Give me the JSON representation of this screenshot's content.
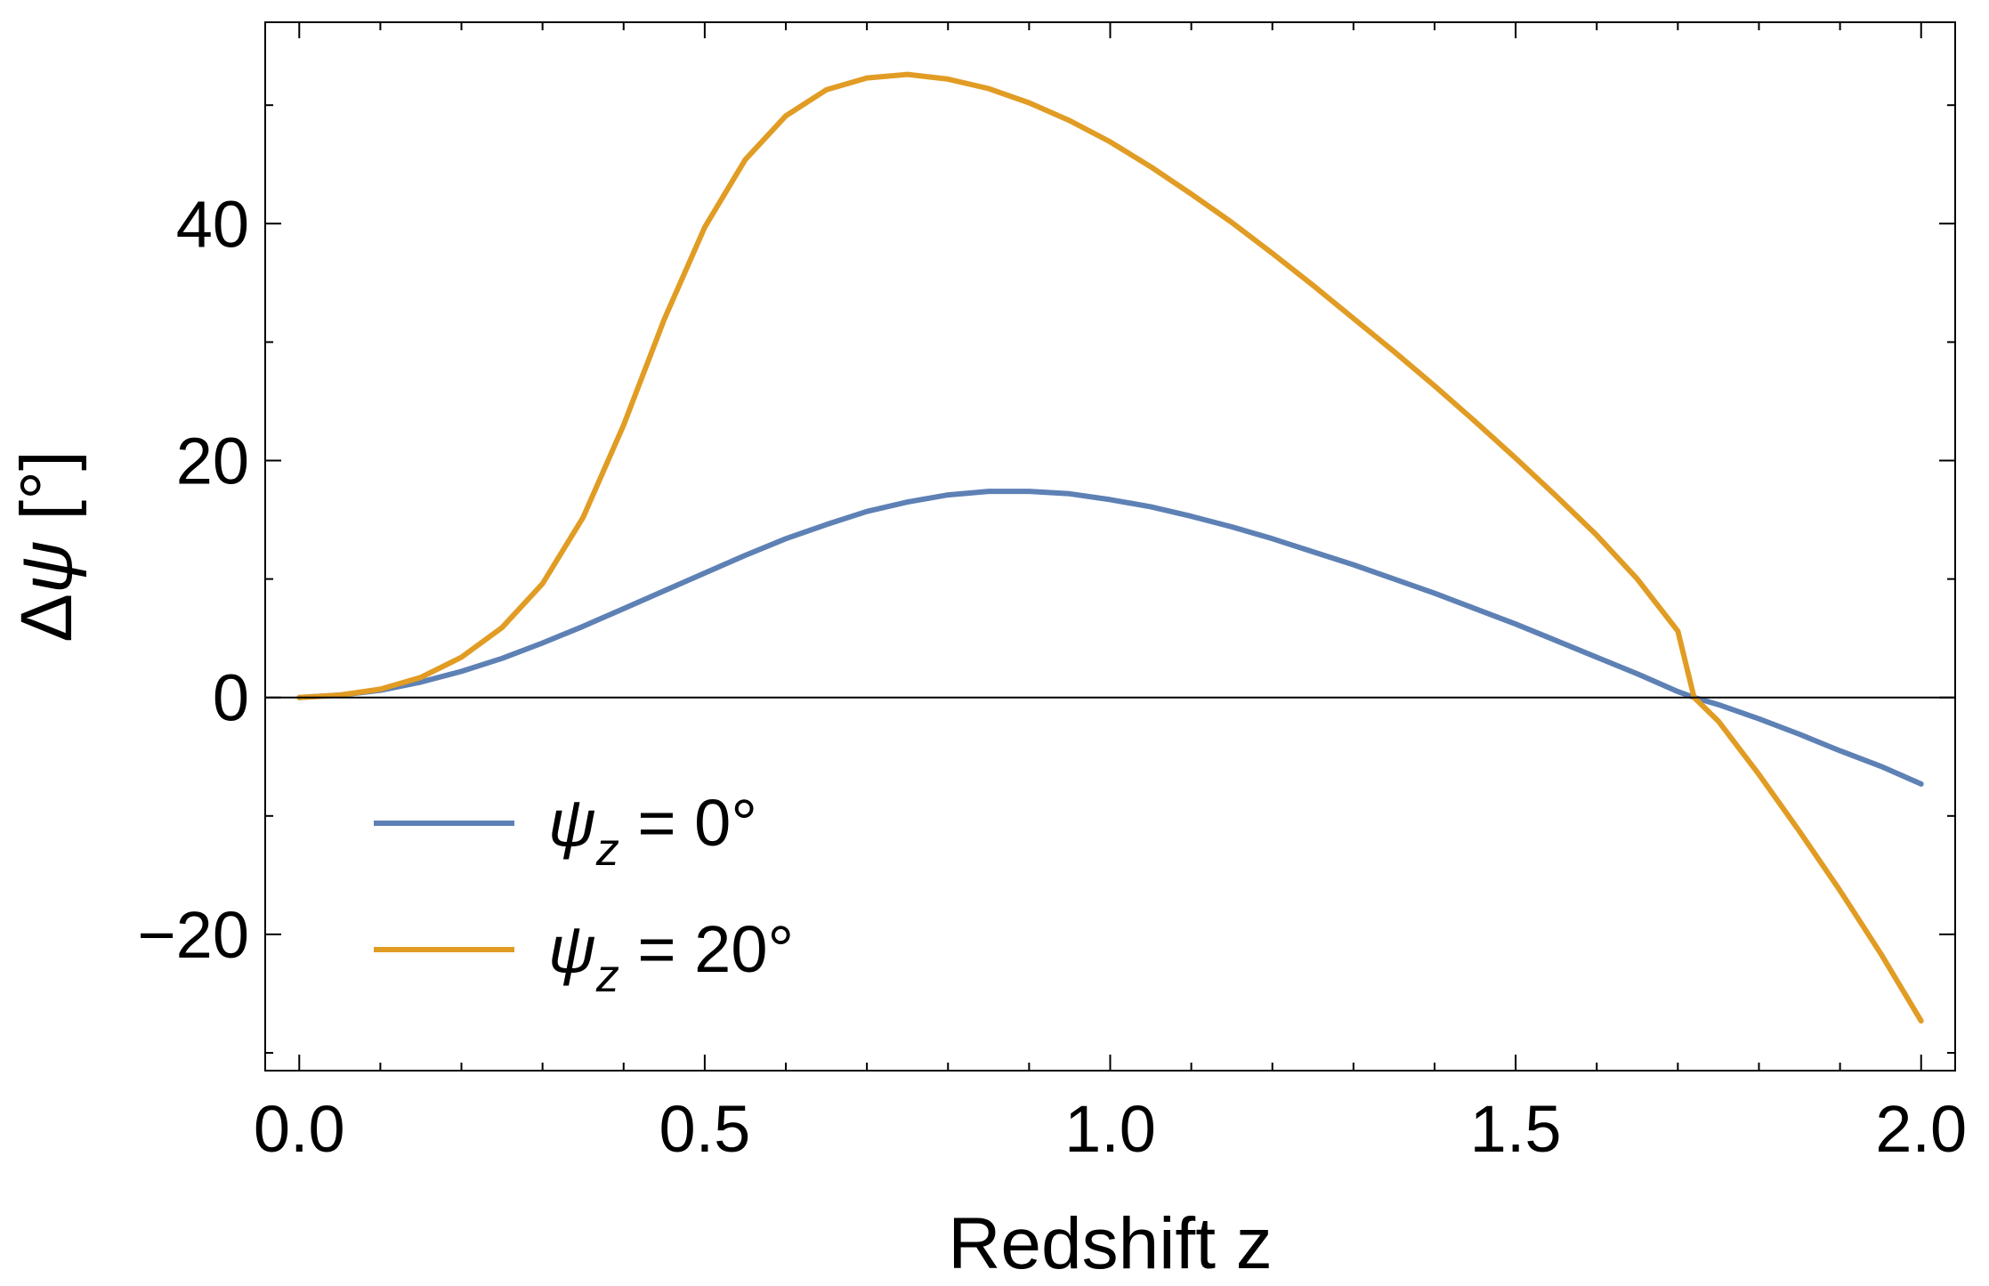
{
  "chart_data": {
    "type": "line",
    "title": "",
    "xlabel": "Redshift z",
    "ylabel": {
      "prefix": "Δ",
      "symbol": "ψ",
      "unit": "[°]"
    },
    "xlim": [
      -0.042,
      2.042
    ],
    "ylim": [
      -31.5,
      57.0
    ],
    "x_ticks": [
      {
        "value": 0.0,
        "label": "0.0"
      },
      {
        "value": 0.5,
        "label": "0.5"
      },
      {
        "value": 1.0,
        "label": "1.0"
      },
      {
        "value": 1.5,
        "label": "1.5"
      },
      {
        "value": 2.0,
        "label": "2.0"
      }
    ],
    "y_ticks": [
      {
        "value": -20,
        "label": "−20"
      },
      {
        "value": 0,
        "label": "0"
      },
      {
        "value": 20,
        "label": "20"
      },
      {
        "value": 40,
        "label": "40"
      }
    ],
    "x_minor_step": 0.1,
    "y_minor_step": 10,
    "zero_line": true,
    "grid": false,
    "legend_position": "lower-left",
    "series": [
      {
        "name": "ψz = 0°",
        "legend": {
          "symbol": "ψ",
          "subscript": "z",
          "rest": " = 0°"
        },
        "color": "#5e81b5",
        "x": [
          0.0,
          0.05,
          0.1,
          0.15,
          0.2,
          0.25,
          0.3,
          0.35,
          0.4,
          0.45,
          0.5,
          0.55,
          0.6,
          0.65,
          0.7,
          0.75,
          0.8,
          0.85,
          0.9,
          0.95,
          1.0,
          1.05,
          1.1,
          1.15,
          1.2,
          1.25,
          1.3,
          1.35,
          1.4,
          1.45,
          1.5,
          1.55,
          1.6,
          1.65,
          1.7,
          1.72,
          1.75,
          1.8,
          1.85,
          1.9,
          1.95,
          2.0
        ],
        "values": [
          0.0,
          0.2,
          0.6,
          1.3,
          2.2,
          3.3,
          4.6,
          6.0,
          7.5,
          9.0,
          10.5,
          12.0,
          13.4,
          14.6,
          15.7,
          16.5,
          17.1,
          17.4,
          17.4,
          17.2,
          16.7,
          16.1,
          15.3,
          14.4,
          13.4,
          12.3,
          11.2,
          10.0,
          8.8,
          7.5,
          6.2,
          4.8,
          3.4,
          2.0,
          0.5,
          0.0,
          -0.6,
          -1.8,
          -3.1,
          -4.5,
          -5.8,
          -7.3
        ]
      },
      {
        "name": "ψz = 20°",
        "legend": {
          "symbol": "ψ",
          "subscript": "z",
          "rest": " = 20°"
        },
        "color": "#e19c24",
        "x": [
          0.0,
          0.05,
          0.1,
          0.15,
          0.2,
          0.25,
          0.3,
          0.35,
          0.4,
          0.45,
          0.5,
          0.55,
          0.6,
          0.65,
          0.7,
          0.75,
          0.8,
          0.85,
          0.9,
          0.95,
          1.0,
          1.05,
          1.1,
          1.15,
          1.2,
          1.25,
          1.3,
          1.35,
          1.4,
          1.45,
          1.5,
          1.55,
          1.6,
          1.65,
          1.7,
          1.72,
          1.75,
          1.8,
          1.85,
          1.9,
          1.95,
          2.0
        ],
        "values": [
          0.0,
          0.2,
          0.7,
          1.7,
          3.4,
          5.9,
          9.6,
          15.2,
          23.0,
          31.9,
          39.7,
          45.4,
          49.1,
          51.3,
          52.3,
          52.6,
          52.2,
          51.4,
          50.2,
          48.7,
          46.9,
          44.8,
          42.5,
          40.1,
          37.5,
          34.8,
          32.0,
          29.2,
          26.3,
          23.3,
          20.2,
          17.0,
          13.7,
          10.0,
          5.6,
          0.0,
          -2.0,
          -6.5,
          -11.3,
          -16.3,
          -21.6,
          -27.3
        ]
      }
    ]
  }
}
